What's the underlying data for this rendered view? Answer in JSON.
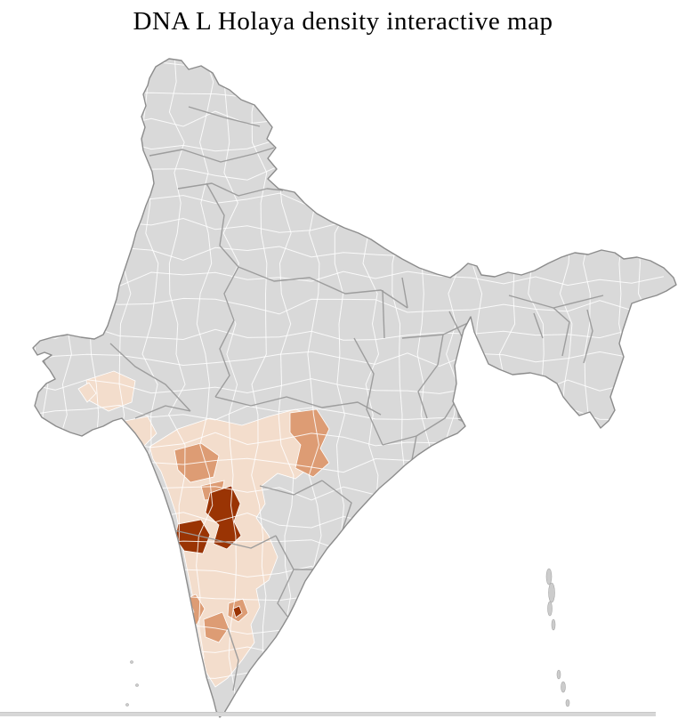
{
  "title": "DNA L Holaya density interactive map",
  "map": {
    "colors": {
      "land": "#d9d9d9",
      "district-border": "#ffffff",
      "state-border": "#9a9a9a",
      "outline": "#8c8c8c",
      "density-low": "#f3ddcc",
      "density-mid": "#dd9c74",
      "density-high": "#9a3404",
      "delta-shade": "#a6a6a6",
      "island": "#cccccc",
      "divider": "#d7d7d7"
    }
  }
}
